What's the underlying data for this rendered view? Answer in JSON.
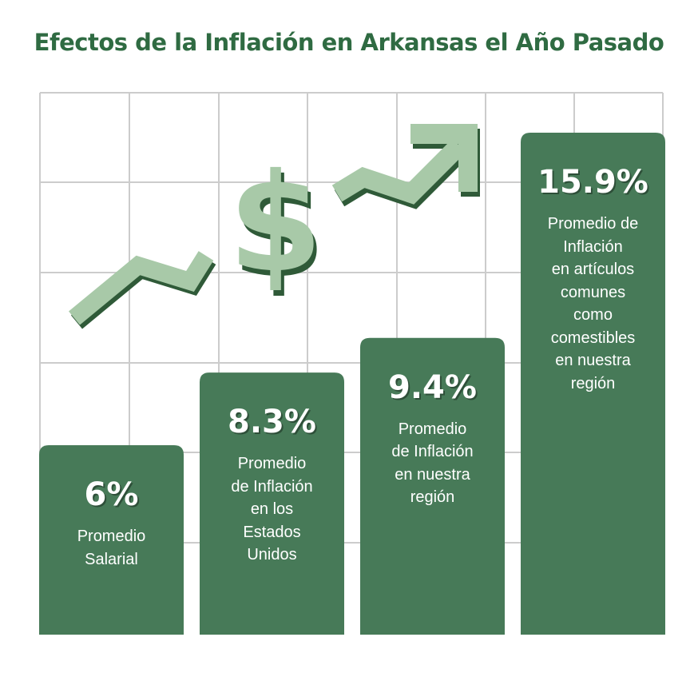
{
  "chart_data": {
    "type": "bar",
    "title": "Efectos de la Inflación en Arkansas el Año Pasado",
    "unit": "%",
    "categories": [
      "Promedio Salarial",
      "Promedio de Inflación en los Estados Unidos",
      "Promedio de Inflación en nuestra región",
      "Promedio de Inflación en artículos comunes como comestibles en nuestra región"
    ],
    "values": [
      6,
      8.3,
      9.4,
      15.9
    ],
    "value_labels": [
      "6%",
      "8.3%",
      "9.4%",
      "15.9%"
    ],
    "label_lines": [
      [
        "Promedio",
        "Salarial"
      ],
      [
        "Promedio",
        "de Inflación",
        "en los",
        "Estados",
        "Unidos"
      ],
      [
        "Promedio",
        "de Inflación",
        "en nuestra",
        "región"
      ],
      [
        "Promedio de",
        "Inflación",
        "en artículos",
        "comunes",
        "como",
        "comestibles",
        "en nuestra",
        "región"
      ]
    ],
    "grid": true,
    "decoration": "dollar-sign-with-rising-arrow",
    "colors": {
      "title": "#2f6b42",
      "bar": "#477a58",
      "grid": "#cccccc",
      "arrow": "#a8c9a8",
      "shadow": "#2f5a38",
      "text": "#ffffff"
    }
  }
}
